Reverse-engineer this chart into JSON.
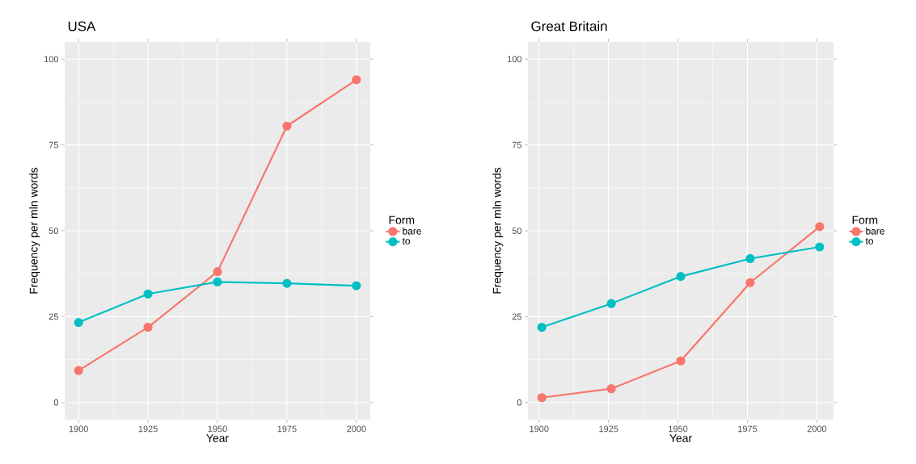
{
  "chart_data": [
    {
      "type": "line",
      "title": "USA",
      "xlabel": "Year",
      "ylabel": "Frequency per mln words",
      "legend_title": "Form",
      "legend": "right",
      "grid": true,
      "marker": "circle",
      "x": [
        1900,
        1925,
        1950,
        1975,
        2000
      ],
      "xlim": [
        1895,
        2005
      ],
      "xticks": [
        1900,
        1925,
        1950,
        1975,
        2000
      ],
      "ylim": [
        -5,
        105
      ],
      "yticks": [
        0,
        25,
        50,
        75,
        100
      ],
      "series": [
        {
          "name": "bare",
          "color": "#f8766d",
          "values": [
            9.3,
            21.9,
            38.1,
            80.5,
            94
          ]
        },
        {
          "name": "to",
          "color": "#00bfc4",
          "values": [
            23.3,
            31.6,
            35.1,
            34.7,
            34
          ]
        }
      ]
    },
    {
      "type": "line",
      "title": "Great Britain",
      "xlabel": "Year",
      "ylabel": "Frequency per mln words",
      "legend_title": "Form",
      "legend": "right",
      "grid": true,
      "marker": "circle",
      "x": [
        1901,
        1926,
        1951,
        1976,
        2001
      ],
      "xlim": [
        1896,
        2006
      ],
      "xticks": [
        1900,
        1925,
        1950,
        1975,
        2000
      ],
      "ylim": [
        -5,
        105
      ],
      "yticks": [
        0,
        25,
        50,
        75,
        100
      ],
      "series": [
        {
          "name": "bare",
          "color": "#f8766d",
          "values": [
            1.4,
            4,
            12.1,
            34.9,
            51.2
          ]
        },
        {
          "name": "to",
          "color": "#00bfc4",
          "values": [
            21.9,
            28.8,
            36.7,
            41.9,
            45.3
          ]
        }
      ]
    }
  ]
}
